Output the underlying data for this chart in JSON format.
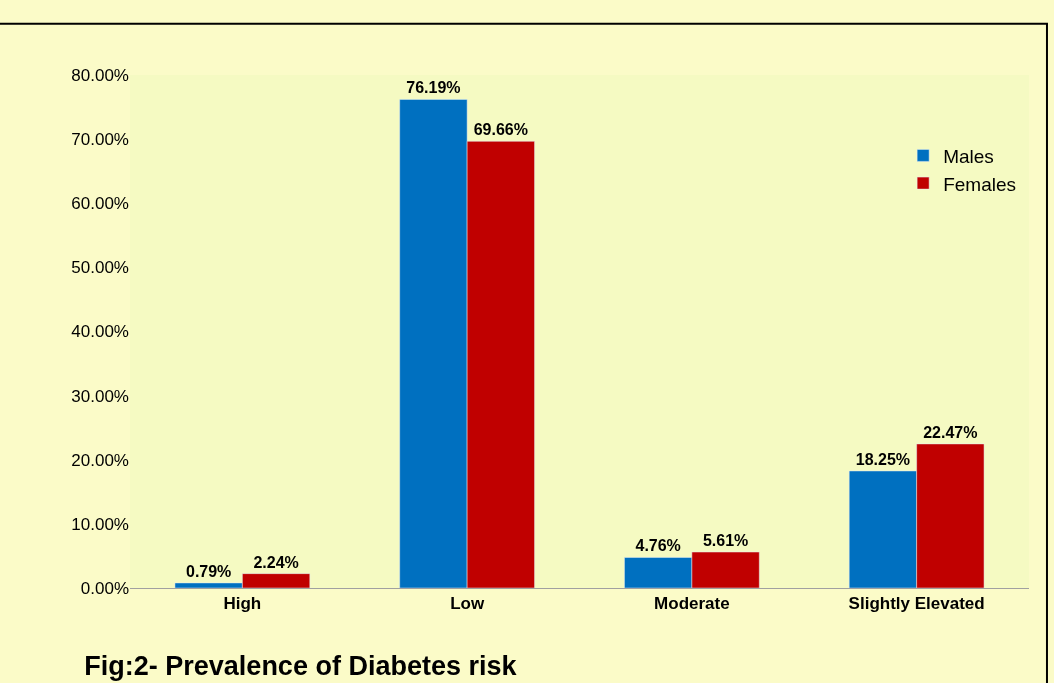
{
  "chart_data": {
    "type": "bar",
    "title": "Fig:2- Prevalence of Diabetes risk",
    "categories": [
      "High",
      "Low",
      "Moderate",
      "Slightly Elevated"
    ],
    "series": [
      {
        "name": "Males",
        "color": "#0070c0",
        "values": [
          0.79,
          76.19,
          4.76,
          18.25
        ],
        "value_labels": [
          "0.79%",
          "76.19%",
          "4.76%",
          "18.25%"
        ]
      },
      {
        "name": "Females",
        "color": "#c00000",
        "values": [
          2.24,
          69.66,
          5.61,
          22.47
        ],
        "value_labels": [
          "2.24%",
          "69.66%",
          "5.61%",
          "22.47%"
        ]
      }
    ],
    "ylim": [
      0,
      80
    ],
    "yticks": [
      {
        "value": 0,
        "label": "0.00%"
      },
      {
        "value": 10,
        "label": "10.00%"
      },
      {
        "value": 20,
        "label": "20.00%"
      },
      {
        "value": 30,
        "label": "30.00%"
      },
      {
        "value": 40,
        "label": "40.00%"
      },
      {
        "value": 50,
        "label": "50.00%"
      },
      {
        "value": 60,
        "label": "60.00%"
      },
      {
        "value": 70,
        "label": "70.00%"
      },
      {
        "value": 80,
        "label": "80.00%"
      }
    ],
    "grid": false,
    "legend": "top right"
  }
}
